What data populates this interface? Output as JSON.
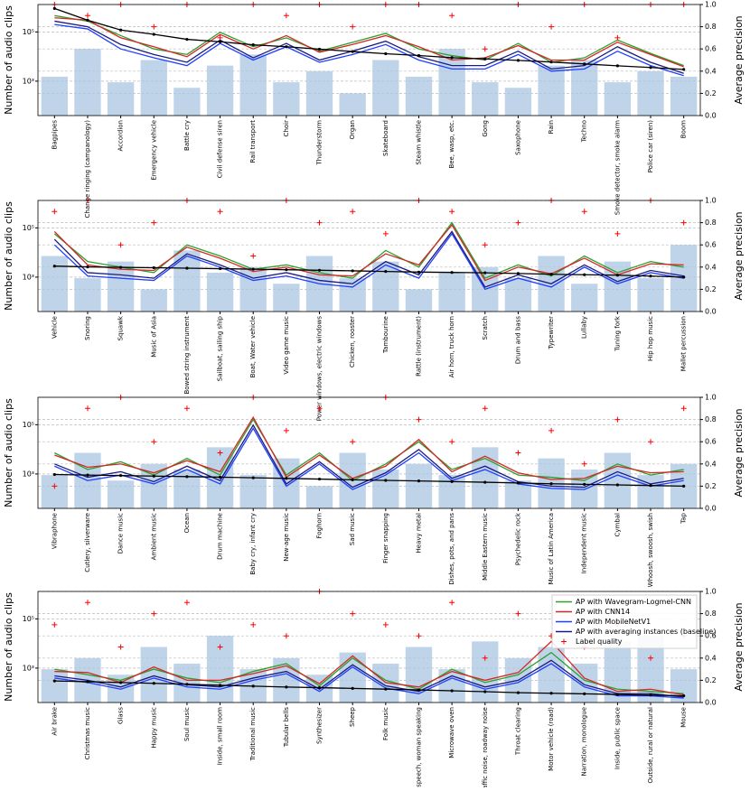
{
  "chart_data": [
    {
      "type": "bar",
      "ylabel": "Number of audio clips",
      "y2label": "Average precision",
      "ylog": true,
      "grid": true,
      "ylim": [
        40,
        1300000
      ],
      "yticks": [
        {
          "value": 1000,
          "label": "10³"
        },
        {
          "value": 100000,
          "label": "10⁵"
        }
      ],
      "y2lim": [
        0,
        1
      ],
      "y2ticks": [
        {
          "value": 0,
          "label": "0.0"
        },
        {
          "value": 0.2,
          "label": "0.2"
        },
        {
          "value": 0.4,
          "label": "0.4"
        },
        {
          "value": 0.6,
          "label": "0.6"
        },
        {
          "value": 0.8,
          "label": "0.8"
        },
        {
          "value": 1,
          "label": "1.0"
        }
      ],
      "categories": [
        "Bagpipes",
        "Change ringing (campanology)",
        "Accordion",
        "Emergency vehicle",
        "Battle cry",
        "Civil defense siren",
        "Rail transport",
        "Choir",
        "Thunderstorm",
        "Organ",
        "Skateboard",
        "Steam whistle",
        "Bee, wasp, etc.",
        "Gong",
        "Saxophone",
        "Rain",
        "Techno",
        "Smoke detector, smoke alarm",
        "Police car (siren)",
        "Boom"
      ],
      "series": [
        {
          "kind": "bar",
          "axis": "y2",
          "color": "#a9c6e0",
          "values": [
            0.35,
            0.6,
            0.3,
            0.5,
            0.25,
            0.45,
            0.55,
            0.3,
            0.4,
            0.2,
            0.5,
            0.35,
            0.6,
            0.3,
            0.25,
            0.45,
            0.5,
            0.3,
            0.4,
            0.35
          ]
        },
        {
          "kind": "line",
          "axis": "y2",
          "color": "#2ca02c",
          "values": [
            0.9,
            0.85,
            0.72,
            0.6,
            0.55,
            0.75,
            0.62,
            0.7,
            0.58,
            0.66,
            0.74,
            0.6,
            0.54,
            0.5,
            0.65,
            0.48,
            0.52,
            0.68,
            0.56,
            0.45
          ]
        },
        {
          "kind": "line",
          "axis": "y2",
          "color": "#d62728",
          "values": [
            0.88,
            0.86,
            0.7,
            0.62,
            0.53,
            0.73,
            0.6,
            0.72,
            0.57,
            0.64,
            0.72,
            0.62,
            0.5,
            0.52,
            0.63,
            0.5,
            0.5,
            0.66,
            0.55,
            0.44
          ]
        },
        {
          "kind": "line",
          "axis": "y2",
          "color": "#1f3fff",
          "values": [
            0.82,
            0.78,
            0.6,
            0.52,
            0.45,
            0.65,
            0.5,
            0.62,
            0.48,
            0.55,
            0.64,
            0.5,
            0.42,
            0.42,
            0.55,
            0.4,
            0.42,
            0.58,
            0.45,
            0.36
          ]
        },
        {
          "kind": "line",
          "axis": "y2",
          "color": "#1a1a80",
          "values": [
            0.85,
            0.8,
            0.64,
            0.55,
            0.48,
            0.68,
            0.52,
            0.65,
            0.5,
            0.58,
            0.67,
            0.53,
            0.45,
            0.45,
            0.58,
            0.42,
            0.45,
            0.62,
            0.48,
            0.38
          ]
        },
        {
          "kind": "marker",
          "axis": "y2",
          "color": "#ff0000",
          "values": [
            1,
            0.9,
            1,
            0.8,
            1,
            0.7,
            1,
            0.9,
            1,
            0.8,
            1,
            1,
            0.9,
            0.6,
            1,
            0.8,
            1,
            0.7,
            1,
            1
          ]
        },
        {
          "kind": "dotline",
          "color": "#000000",
          "values": [
            900000,
            300000,
            120000,
            80000,
            50000,
            40000,
            30000,
            25000,
            20000,
            16000,
            13000,
            11000,
            9000,
            8000,
            7000,
            6000,
            5000,
            4200,
            3600,
            3000
          ]
        }
      ]
    },
    {
      "type": "bar",
      "ylabel": "Number of audio clips",
      "y2label": "Average precision",
      "ylog": true,
      "grid": true,
      "ylim": [
        40,
        1300000
      ],
      "yticks": [
        {
          "value": 1000,
          "label": "10³"
        },
        {
          "value": 100000,
          "label": "10⁵"
        }
      ],
      "y2lim": [
        0,
        1
      ],
      "y2ticks": [
        {
          "value": 0,
          "label": "0.0"
        },
        {
          "value": 0.2,
          "label": "0.2"
        },
        {
          "value": 0.4,
          "label": "0.4"
        },
        {
          "value": 0.6,
          "label": "0.6"
        },
        {
          "value": 0.8,
          "label": "0.8"
        },
        {
          "value": 1,
          "label": "1.0"
        }
      ],
      "categories": [
        "Vehicle",
        "Snoring",
        "Squawk",
        "Music of Asia",
        "Bowed string instrument",
        "Sailboat, sailing ship",
        "Boat, Water vehicle",
        "Video game music",
        "Power windows, electric windows",
        "Chicken, rooster",
        "Tambourine",
        "Rattle (instrument)",
        "Air horn, truck horn",
        "Scratch",
        "Drum and bass",
        "Typewriter",
        "Lullaby",
        "Tuning fork",
        "Hip hop music",
        "Mallet percussion"
      ],
      "series": [
        {
          "kind": "bar",
          "axis": "y2",
          "color": "#a9c6e0",
          "values": [
            0.5,
            0.3,
            0.45,
            0.2,
            0.55,
            0.35,
            0.4,
            0.25,
            0.5,
            0.3,
            0.45,
            0.2,
            0.35,
            0.4,
            0.3,
            0.5,
            0.25,
            0.45,
            0.3,
            0.6
          ]
        },
        {
          "kind": "line",
          "axis": "y2",
          "color": "#2ca02c",
          "values": [
            0.7,
            0.45,
            0.4,
            0.35,
            0.6,
            0.5,
            0.38,
            0.42,
            0.35,
            0.3,
            0.55,
            0.4,
            0.8,
            0.3,
            0.42,
            0.32,
            0.5,
            0.35,
            0.45,
            0.4
          ]
        },
        {
          "kind": "line",
          "axis": "y2",
          "color": "#d62728",
          "values": [
            0.72,
            0.42,
            0.38,
            0.37,
            0.58,
            0.48,
            0.36,
            0.4,
            0.33,
            0.32,
            0.52,
            0.42,
            0.78,
            0.28,
            0.4,
            0.34,
            0.48,
            0.33,
            0.43,
            0.42
          ]
        },
        {
          "kind": "line",
          "axis": "y2",
          "color": "#1f3fff",
          "values": [
            0.6,
            0.32,
            0.3,
            0.28,
            0.5,
            0.4,
            0.28,
            0.32,
            0.25,
            0.22,
            0.42,
            0.3,
            0.7,
            0.2,
            0.3,
            0.22,
            0.4,
            0.25,
            0.35,
            0.3
          ]
        },
        {
          "kind": "line",
          "axis": "y2",
          "color": "#1a1a80",
          "values": [
            0.65,
            0.35,
            0.33,
            0.3,
            0.52,
            0.42,
            0.3,
            0.35,
            0.28,
            0.25,
            0.45,
            0.33,
            0.72,
            0.22,
            0.33,
            0.25,
            0.42,
            0.27,
            0.37,
            0.32
          ]
        },
        {
          "kind": "marker",
          "axis": "y2",
          "color": "#ff0000",
          "values": [
            0.9,
            1,
            0.6,
            0.8,
            1,
            0.9,
            0.5,
            1,
            0.8,
            0.9,
            0.7,
            1,
            0.9,
            0.6,
            0.8,
            1,
            0.9,
            0.7,
            1,
            0.8
          ]
        },
        {
          "kind": "dotline",
          "color": "#000000",
          "values": [
            2800,
            2600,
            2500,
            2400,
            2300,
            2200,
            2100,
            2000,
            1900,
            1800,
            1700,
            1600,
            1550,
            1500,
            1400,
            1300,
            1250,
            1200,
            1100,
            1000
          ]
        }
      ]
    },
    {
      "type": "bar",
      "ylabel": "Number of audio clips",
      "y2label": "Average precision",
      "ylog": true,
      "grid": true,
      "ylim": [
        40,
        1300000
      ],
      "yticks": [
        {
          "value": 1000,
          "label": "10³"
        },
        {
          "value": 100000,
          "label": "10⁵"
        }
      ],
      "y2lim": [
        0,
        1
      ],
      "y2ticks": [
        {
          "value": 0,
          "label": "0.0"
        },
        {
          "value": 0.2,
          "label": "0.2"
        },
        {
          "value": 0.4,
          "label": "0.4"
        },
        {
          "value": 0.6,
          "label": "0.6"
        },
        {
          "value": 0.8,
          "label": "0.8"
        },
        {
          "value": 1,
          "label": "1.0"
        }
      ],
      "categories": [
        "Vibraphone",
        "Cutlery, silverware",
        "Dance music",
        "Ambient music",
        "Ocean",
        "Drum machine",
        "Baby cry, infant cry",
        "New-age music",
        "Foghorn",
        "Sad music",
        "Finger snapping",
        "Heavy metal",
        "Dishes, pots, and pans",
        "Middle Eastern music",
        "Psychedelic rock",
        "Music of Latin America",
        "Independent music",
        "Cymbal",
        "Whoosh, swoosh, swish",
        "Tap"
      ],
      "series": [
        {
          "kind": "bar",
          "axis": "y2",
          "color": "#a9c6e0",
          "values": [
            0.3,
            0.5,
            0.25,
            0.4,
            0.35,
            0.55,
            0.3,
            0.45,
            0.2,
            0.5,
            0.35,
            0.4,
            0.3,
            0.55,
            0.25,
            0.45,
            0.35,
            0.5,
            0.3,
            0.4
          ]
        },
        {
          "kind": "line",
          "axis": "y2",
          "color": "#2ca02c",
          "values": [
            0.5,
            0.35,
            0.42,
            0.3,
            0.45,
            0.3,
            0.8,
            0.3,
            0.5,
            0.25,
            0.4,
            0.6,
            0.35,
            0.45,
            0.3,
            0.28,
            0.25,
            0.4,
            0.3,
            0.35
          ]
        },
        {
          "kind": "line",
          "axis": "y2",
          "color": "#d62728",
          "values": [
            0.48,
            0.37,
            0.4,
            0.32,
            0.43,
            0.33,
            0.82,
            0.28,
            0.48,
            0.27,
            0.38,
            0.62,
            0.33,
            0.47,
            0.32,
            0.26,
            0.27,
            0.38,
            0.32,
            0.33
          ]
        },
        {
          "kind": "line",
          "axis": "y2",
          "color": "#1f3fff",
          "values": [
            0.38,
            0.25,
            0.3,
            0.22,
            0.35,
            0.22,
            0.72,
            0.2,
            0.4,
            0.17,
            0.3,
            0.5,
            0.25,
            0.35,
            0.22,
            0.18,
            0.17,
            0.3,
            0.2,
            0.25
          ]
        },
        {
          "kind": "line",
          "axis": "y2",
          "color": "#1a1a80",
          "values": [
            0.4,
            0.28,
            0.33,
            0.24,
            0.38,
            0.25,
            0.75,
            0.22,
            0.42,
            0.19,
            0.32,
            0.53,
            0.27,
            0.38,
            0.24,
            0.2,
            0.19,
            0.33,
            0.22,
            0.27
          ]
        },
        {
          "kind": "marker",
          "axis": "y2",
          "color": "#ff0000",
          "values": [
            0.2,
            0.9,
            1,
            0.6,
            0.9,
            0.5,
            1,
            0.7,
            0.9,
            0.6,
            1,
            0.8,
            0.6,
            0.9,
            0.5,
            0.7,
            0.4,
            0.8,
            0.6,
            0.9
          ]
        },
        {
          "kind": "dotline",
          "color": "#000000",
          "values": [
            950,
            900,
            860,
            820,
            780,
            740,
            700,
            660,
            620,
            580,
            550,
            520,
            490,
            460,
            430,
            400,
            380,
            360,
            340,
            320
          ]
        }
      ]
    },
    {
      "type": "bar",
      "ylabel": "Number of audio clips",
      "y2label": "Average precision",
      "ylog": true,
      "grid": true,
      "legend": "upper right",
      "ylim": [
        40,
        1300000
      ],
      "yticks": [
        {
          "value": 1000,
          "label": "10³"
        },
        {
          "value": 100000,
          "label": "10⁵"
        }
      ],
      "y2lim": [
        0,
        1
      ],
      "y2ticks": [
        {
          "value": 0,
          "label": "0.0"
        },
        {
          "value": 0.2,
          "label": "0.2"
        },
        {
          "value": 0.4,
          "label": "0.4"
        },
        {
          "value": 0.6,
          "label": "0.6"
        },
        {
          "value": 0.8,
          "label": "0.8"
        },
        {
          "value": 1,
          "label": "1.0"
        }
      ],
      "categories": [
        "Air brake",
        "Christmas music",
        "Glass",
        "Happy music",
        "Soul music",
        "Inside, small room",
        "Traditional music",
        "Tubular bells",
        "Synthesizer",
        "Sheep",
        "Folk music",
        "Female speech, woman speaking",
        "Microwave oven",
        "Traffic noise, roadway noise",
        "Throat clearing",
        "Motor vehicle (road)",
        "Narration, monologue",
        "Inside, public space",
        "Outside, rural or natural",
        "Mouse"
      ],
      "series": [
        {
          "kind": "bar",
          "axis": "y2",
          "color": "#a9c6e0",
          "values": [
            0.3,
            0.4,
            0.25,
            0.5,
            0.35,
            0.6,
            0.3,
            0.4,
            0.25,
            0.45,
            0.35,
            0.5,
            0.3,
            0.55,
            0.4,
            0.5,
            0.35,
            0.55,
            0.6,
            0.3
          ]
        },
        {
          "kind": "line",
          "axis": "y2",
          "color": "#2ca02c",
          "values": [
            0.3,
            0.25,
            0.2,
            0.3,
            0.22,
            0.18,
            0.28,
            0.35,
            0.15,
            0.4,
            0.2,
            0.12,
            0.3,
            0.18,
            0.25,
            0.45,
            0.2,
            0.12,
            0.1,
            0.08
          ]
        },
        {
          "kind": "line",
          "axis": "y2",
          "color": "#d62728",
          "values": [
            0.28,
            0.27,
            0.18,
            0.32,
            0.2,
            0.2,
            0.26,
            0.33,
            0.17,
            0.42,
            0.18,
            0.14,
            0.28,
            0.2,
            0.27,
            0.55,
            0.22,
            0.1,
            0.12,
            0.07
          ]
        },
        {
          "kind": "line",
          "axis": "y2",
          "color": "#1f3fff",
          "values": [
            0.22,
            0.18,
            0.12,
            0.22,
            0.14,
            0.12,
            0.2,
            0.26,
            0.1,
            0.32,
            0.13,
            0.08,
            0.22,
            0.12,
            0.18,
            0.35,
            0.14,
            0.06,
            0.06,
            0.04
          ]
        },
        {
          "kind": "line",
          "axis": "y2",
          "color": "#1a1a80",
          "values": [
            0.24,
            0.2,
            0.14,
            0.24,
            0.16,
            0.14,
            0.22,
            0.28,
            0.12,
            0.34,
            0.15,
            0.1,
            0.24,
            0.14,
            0.2,
            0.38,
            0.16,
            0.08,
            0.08,
            0.05
          ]
        },
        {
          "kind": "marker",
          "axis": "y2",
          "color": "#ff0000",
          "values": [
            0.7,
            0.9,
            0.5,
            0.8,
            0.9,
            0.5,
            0.7,
            0.6,
            1,
            0.8,
            0.7,
            0.6,
            0.9,
            0.4,
            0.8,
            0.6,
            0.5,
            0.7,
            0.4,
            0.6
          ]
        },
        {
          "kind": "dotline",
          "color": "#000000",
          "values": [
            300,
            280,
            260,
            240,
            220,
            200,
            185,
            170,
            160,
            150,
            140,
            130,
            120,
            110,
            100,
            95,
            90,
            85,
            80,
            75
          ]
        }
      ],
      "legend_items": [
        {
          "name": "AP with Wavegram-Logmel-CNN",
          "color": "#2ca02c",
          "kind": "line"
        },
        {
          "name": "AP with CNN14",
          "color": "#d62728",
          "kind": "line"
        },
        {
          "name": "AP with MobileNetV1",
          "color": "#1f3fff",
          "kind": "line"
        },
        {
          "name": "AP with averaging instances (baseline)",
          "color": "#1a1a80",
          "kind": "line"
        },
        {
          "name": "Label quality",
          "color": "#ff0000",
          "kind": "marker"
        }
      ]
    }
  ]
}
